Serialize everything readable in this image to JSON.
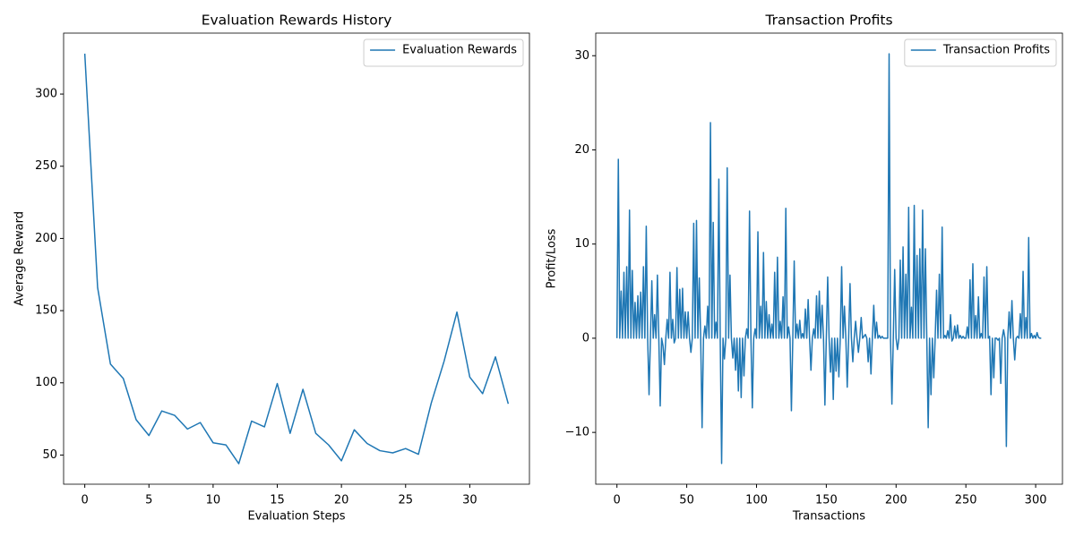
{
  "chart_data": [
    {
      "type": "line",
      "title": "Evaluation Rewards History",
      "x_label": "Evaluation Steps",
      "y_label": "Average Reward",
      "xlim": [
        -1.65,
        34.65
      ],
      "xticks": [
        0,
        5,
        10,
        15,
        20,
        25,
        30
      ],
      "ylim": [
        29.8,
        342.2
      ],
      "yticks": [
        50,
        100,
        150,
        200,
        250,
        300
      ],
      "legend": "upper right",
      "series": [
        {
          "name": "Evaluation Rewards",
          "color": "#1f77b4",
          "values": [
            328,
            166,
            113,
            103,
            74.5,
            63.5,
            80.5,
            77.5,
            68,
            72.5,
            58.5,
            57,
            44,
            73.5,
            69.5,
            99.5,
            65,
            95.5,
            65,
            57,
            46,
            67.5,
            58,
            53,
            51.5,
            54.5,
            50.5,
            86,
            115,
            149,
            104,
            92.5,
            118,
            85.5
          ]
        }
      ]
    },
    {
      "type": "line",
      "title": "Transaction Profits",
      "x_label": "Transactions",
      "y_label": "Profit/Loss",
      "xlim": [
        -15.2,
        319.2
      ],
      "xticks": [
        0,
        50,
        100,
        150,
        200,
        250,
        300
      ],
      "ylim": [
        -15.5,
        32.4
      ],
      "yticks": [
        {
          "value": -10,
          "label": "−10"
        },
        0,
        10,
        20,
        30
      ],
      "legend": "upper right",
      "series": [
        {
          "name": "Transaction Profits",
          "color": "#1f77b4",
          "values": [
            0,
            19,
            0,
            5,
            0,
            7,
            0,
            7.6,
            0,
            13.6,
            0,
            7.2,
            0,
            3.8,
            0,
            4.5,
            0,
            4.9,
            0,
            7.6,
            0,
            11.9,
            0,
            -6,
            0,
            6.1,
            0,
            2.5,
            0,
            6.7,
            0,
            -7.2,
            0,
            -0.8,
            -2.8,
            0,
            2,
            0,
            7,
            0,
            2,
            -0.5,
            0,
            7.5,
            0,
            5.2,
            0,
            5.3,
            0,
            2.8,
            0,
            2.8,
            0,
            -1.5,
            0,
            12.2,
            0,
            12.5,
            0,
            6.4,
            0,
            -9.5,
            0,
            1.3,
            0,
            3.4,
            0,
            22.9,
            0,
            12.3,
            0,
            1.7,
            0,
            16.9,
            0,
            -13.3,
            0,
            -2.2,
            0,
            18.1,
            0,
            6.7,
            0,
            -2.1,
            0,
            -3.4,
            0,
            -5.6,
            0,
            -6.3,
            0,
            -4,
            0,
            1,
            0,
            13.5,
            0,
            -7.4,
            0,
            1,
            0,
            11.3,
            0,
            3.4,
            0,
            9.1,
            0,
            3.9,
            0,
            2.5,
            0,
            1.5,
            0,
            7,
            0,
            8.6,
            0,
            1.8,
            0,
            4.4,
            0,
            13.8,
            0,
            1.2,
            0,
            -7.7,
            0,
            8.2,
            0,
            1.5,
            0,
            1.9,
            0,
            0.5,
            0,
            3.1,
            0,
            4.1,
            0,
            -3.4,
            0,
            1,
            0,
            4.5,
            0,
            5,
            0,
            3.5,
            0,
            -7.1,
            0,
            6.5,
            0,
            -3.6,
            0,
            -6.5,
            0,
            -3.5,
            0,
            -4.1,
            0,
            7.6,
            0,
            3.4,
            0,
            -5.2,
            0,
            5.8,
            0,
            -2.5,
            0,
            1.8,
            0,
            -1.5,
            0,
            2.2,
            0,
            0.2,
            0.4,
            0,
            -2.5,
            0,
            -3.8,
            0,
            3.5,
            0,
            1.7,
            0,
            0.3,
            0,
            0.2,
            0,
            0,
            0,
            0,
            30.2,
            0,
            -7,
            0,
            7.3,
            0,
            -1.2,
            0,
            8.3,
            0,
            9.7,
            0,
            6.8,
            0,
            13.9,
            0,
            3.3,
            0,
            14.1,
            0,
            8.8,
            0,
            9.5,
            0,
            13.6,
            0,
            9.5,
            0,
            -9.5,
            0,
            -6,
            0,
            -4.2,
            0,
            5.1,
            0,
            6.8,
            0,
            11.8,
            0,
            0.3,
            0,
            0.8,
            0,
            2.5,
            -0.3,
            0,
            1.3,
            0,
            1.4,
            0,
            0.3,
            0,
            0.2,
            0,
            0,
            1.2,
            0,
            6.2,
            0,
            7.9,
            0,
            2.4,
            0,
            4.4,
            0,
            0.5,
            0,
            6.5,
            0,
            7.6,
            0,
            0.2,
            -6,
            0,
            -4.2,
            0,
            0,
            -0.2,
            0,
            -4.8,
            0,
            0.9,
            0,
            -11.5,
            0,
            2.8,
            0,
            4,
            0,
            -2.3,
            0,
            0.2,
            0,
            2.6,
            0,
            7.1,
            0,
            2.2,
            0,
            10.7,
            0,
            0.5,
            0,
            0.3,
            0,
            0.6,
            0.1,
            0,
            0
          ]
        }
      ]
    }
  ]
}
